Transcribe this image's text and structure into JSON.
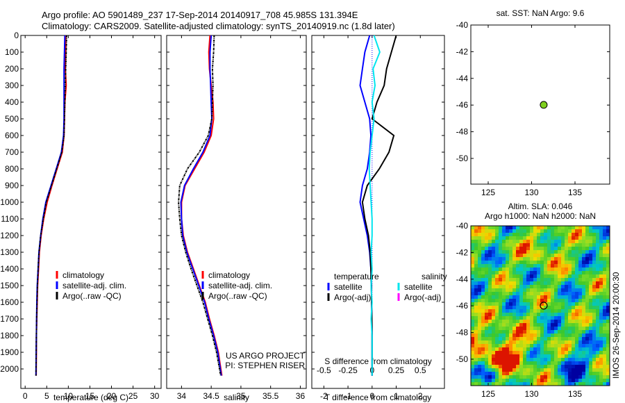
{
  "header": {
    "line1": "Argo profile: AO 5901489_237 17-Sep-2014 20140917_708 45.985S 131.394E",
    "line2": "Climatology: CARS2009. Satellite-adjusted climatology: synTS_20140919.nc (1.8d later)"
  },
  "colors": {
    "climatology": "#ff0000",
    "satellite": "#0000ff",
    "argo": "#000000",
    "sal_satellite": "#00e5ee",
    "sal_argo": "#ff00ff",
    "marker": "#7fd01e"
  },
  "chart_data": [
    {
      "type": "line",
      "id": "temperature",
      "xlabel": "temperature (deg C)",
      "ylabel": "",
      "xlim": [
        -1,
        31.5
      ],
      "ylim": [
        2050,
        0
      ],
      "xticks": [
        0,
        5,
        10,
        15,
        20,
        25,
        30
      ],
      "yticks": [
        0,
        100,
        200,
        300,
        400,
        500,
        600,
        700,
        800,
        900,
        1000,
        1100,
        1200,
        1300,
        1400,
        1500,
        1600,
        1700,
        1800,
        1900,
        2000
      ],
      "legend": [
        "climatology",
        "satellite-adj. clim.",
        "Argo(..raw -QC)"
      ],
      "series": [
        {
          "name": "climatology",
          "x": [
            9.4,
            9.4,
            9.3,
            9.5,
            9.2,
            9.1,
            9.0,
            8.6,
            7.4,
            6.2,
            5.1,
            4.3,
            3.7,
            3.3,
            3.1,
            2.9,
            2.8,
            2.7,
            2.6,
            2.6,
            2.55
          ],
          "y": [
            0,
            100,
            200,
            300,
            400,
            500,
            600,
            700,
            800,
            900,
            1000,
            1100,
            1200,
            1300,
            1400,
            1500,
            1600,
            1700,
            1800,
            1900,
            2040
          ]
        },
        {
          "name": "satellite-adj. clim.",
          "x": [
            9.2,
            9.1,
            9.0,
            9.0,
            9.0,
            9.0,
            8.9,
            8.4,
            7.2,
            6.0,
            4.8,
            4.1,
            3.6,
            3.2,
            3.0,
            2.8,
            2.7,
            2.65,
            2.6,
            2.55,
            2.5
          ],
          "y": [
            0,
            100,
            200,
            300,
            400,
            500,
            600,
            700,
            800,
            900,
            1000,
            1100,
            1200,
            1300,
            1400,
            1500,
            1600,
            1700,
            1800,
            1900,
            2040
          ]
        },
        {
          "name": "Argo(..raw -QC)",
          "x": [
            9.6,
            9.5,
            9.4,
            9.3,
            9.2,
            9.1,
            9.0,
            8.5,
            7.3,
            6.1,
            4.9,
            4.2,
            3.6,
            3.2,
            3.0,
            2.85,
            2.75,
            2.65,
            2.6,
            2.55,
            2.5
          ],
          "y": [
            0,
            100,
            200,
            300,
            400,
            500,
            600,
            700,
            800,
            900,
            1000,
            1100,
            1200,
            1300,
            1400,
            1500,
            1600,
            1700,
            1800,
            1900,
            2040
          ]
        }
      ]
    },
    {
      "type": "line",
      "id": "salinity",
      "xlabel": "salinity",
      "xlim": [
        33.75,
        36.1
      ],
      "ylim": [
        2050,
        0
      ],
      "xticks": [
        34,
        34.5,
        35,
        35.5,
        36
      ],
      "legend": [
        "climatology",
        "satellite-adj. clim.",
        "Argo(..raw -QC)"
      ],
      "annotation": [
        "US ARGO PROJECT",
        "PI: STEPHEN RISER"
      ],
      "series": [
        {
          "name": "climatology",
          "x": [
            34.48,
            34.46,
            34.47,
            34.5,
            34.53,
            34.54,
            34.5,
            34.38,
            34.22,
            34.06,
            34.0,
            34.0,
            34.03,
            34.1,
            34.2,
            34.3,
            34.4,
            34.47,
            34.55,
            34.62,
            34.68
          ],
          "y": [
            0,
            100,
            200,
            300,
            400,
            500,
            600,
            700,
            800,
            900,
            1000,
            1100,
            1200,
            1300,
            1400,
            1500,
            1600,
            1700,
            1800,
            1900,
            2040
          ]
        },
        {
          "name": "satellite-adj. clim.",
          "x": [
            34.5,
            34.48,
            34.48,
            34.49,
            34.5,
            34.51,
            34.48,
            34.36,
            34.2,
            34.05,
            33.99,
            34.0,
            34.02,
            34.09,
            34.19,
            34.29,
            34.39,
            34.46,
            34.54,
            34.61,
            34.67
          ],
          "y": [
            0,
            100,
            200,
            300,
            400,
            500,
            600,
            700,
            800,
            900,
            1000,
            1100,
            1200,
            1300,
            1400,
            1500,
            1600,
            1700,
            1800,
            1900,
            2040
          ]
        },
        {
          "name": "Argo(..raw -QC)",
          "x": [
            34.55,
            34.54,
            34.52,
            34.53,
            34.52,
            34.51,
            34.45,
            34.3,
            34.1,
            33.97,
            33.95,
            33.97,
            34.0,
            34.07,
            34.16,
            34.26,
            34.36,
            34.44,
            34.52,
            34.59,
            34.66
          ],
          "y": [
            0,
            100,
            200,
            300,
            400,
            500,
            600,
            700,
            800,
            900,
            1000,
            1100,
            1200,
            1300,
            1400,
            1500,
            1600,
            1700,
            1800,
            1900,
            2040
          ]
        }
      ]
    },
    {
      "type": "line",
      "id": "difference",
      "xlabel": "T difference from climatology",
      "x2label": "S difference from climatology",
      "xlim": [
        -2.5,
        3.0
      ],
      "x2lim": [
        -0.625,
        0.75
      ],
      "ylim": [
        2050,
        0
      ],
      "xticks": [
        -2,
        -1,
        0,
        1,
        2
      ],
      "x2ticks": [
        -0.5,
        -0.25,
        0,
        0.25,
        0.5
      ],
      "x2ticklabels": [
        "-0.5",
        "-0.25",
        "0",
        "0.25",
        "0.5"
      ],
      "legend_temperature_title": "temperature",
      "legend_salinity_title": "salinity",
      "legend": [
        "satellite",
        "Argo(-adj)",
        "satellite",
        "Argo(-adj)"
      ],
      "series": [
        {
          "name": "temperature satellite",
          "x": [
            -0.1,
            -0.3,
            -0.4,
            -0.5,
            -0.3,
            -0.1,
            -0.05,
            -0.1,
            -0.2,
            -0.4,
            -0.5,
            -0.35,
            -0.2,
            -0.1,
            -0.05,
            -0.03,
            -0.02,
            -0.01,
            0,
            0,
            0
          ],
          "y": [
            0,
            100,
            200,
            300,
            400,
            500,
            600,
            700,
            800,
            900,
            1000,
            1100,
            1200,
            1300,
            1400,
            1500,
            1600,
            1700,
            1800,
            1900,
            2040
          ]
        },
        {
          "name": "temperature Argo(-adj)",
          "x": [
            1.0,
            0.8,
            0.6,
            0.5,
            0.2,
            0.0,
            0.9,
            0.7,
            0.3,
            -0.2,
            -0.4,
            -0.3,
            -0.15,
            -0.08,
            -0.05,
            -0.03,
            -0.02,
            -0.01,
            0,
            0,
            0
          ],
          "y": [
            0,
            100,
            200,
            300,
            400,
            500,
            600,
            700,
            800,
            900,
            1000,
            1100,
            1200,
            1300,
            1400,
            1500,
            1600,
            1700,
            1800,
            1900,
            2040
          ]
        },
        {
          "name": "salinity satellite",
          "x": [
            0.02,
            0.08,
            0.01,
            0.03,
            0.0,
            0.02,
            0.0,
            -0.02,
            -0.03,
            -0.02,
            -0.01,
            0.0,
            0.0,
            -0.01,
            0.0,
            -0.01,
            0.0,
            -0.01,
            0.0,
            0.0,
            0.0
          ],
          "y": [
            0,
            100,
            200,
            300,
            400,
            500,
            600,
            700,
            800,
            900,
            1000,
            1100,
            1200,
            1300,
            1400,
            1500,
            1600,
            1700,
            1800,
            1900,
            2040
          ]
        }
      ]
    },
    {
      "type": "scatter",
      "id": "sst_map",
      "title": "sat. SST: NaN Argo: 9.6",
      "xlim": [
        123,
        139
      ],
      "ylim": [
        -52,
        -40
      ],
      "xticks": [
        125,
        130,
        135
      ],
      "yticks": [
        -40,
        -42,
        -44,
        -46,
        -48,
        -50
      ],
      "x": [
        131.394
      ],
      "y": [
        -45.985
      ]
    },
    {
      "type": "heatmap",
      "id": "sla_map",
      "title": "Altim. SLA: 0.046",
      "subtitle": "Argo h1000: NaN h2000: NaN",
      "side_label": "IMOS 26-Sep-2014 20:00:30",
      "xlim": [
        123,
        139
      ],
      "ylim": [
        -52,
        -40
      ],
      "xticks": [
        125,
        130,
        135
      ],
      "yticks": [
        -40,
        -42,
        -44,
        -46,
        -48,
        -50
      ],
      "marker": [
        131.394,
        -45.985
      ]
    }
  ]
}
